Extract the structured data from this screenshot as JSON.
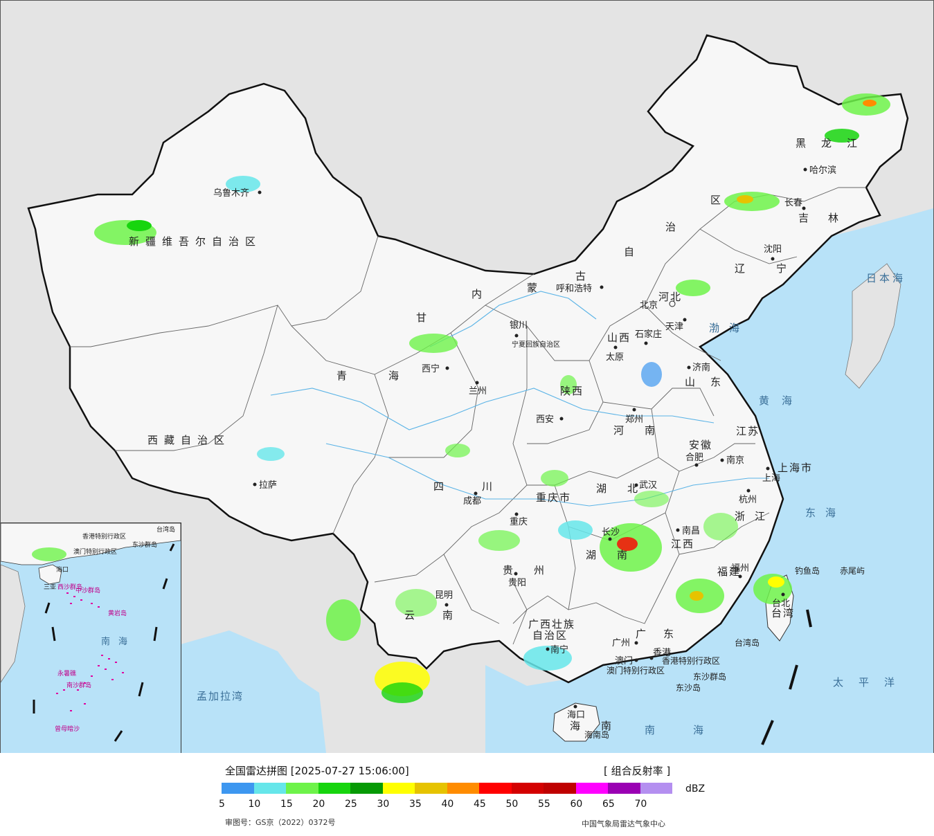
{
  "map": {
    "provinces": [
      {
        "id": "xinjiang",
        "text": "新疆维吾尔自治区"
      },
      {
        "id": "xizang",
        "text": "西藏自治区"
      },
      {
        "id": "qinghai",
        "text": "青海"
      },
      {
        "id": "gansu",
        "text": "甘"
      },
      {
        "id": "sichuan",
        "text": "四川"
      },
      {
        "id": "yunnan",
        "text": "云南"
      },
      {
        "id": "guizhou",
        "text": "贵州"
      },
      {
        "id": "guangxi",
        "text": "广西壮族"
      },
      {
        "id": "guangxi2",
        "text": "自治区"
      },
      {
        "id": "guangdong",
        "text": "广东"
      },
      {
        "id": "hunan",
        "text": "湖南"
      },
      {
        "id": "hubei",
        "text": "湖北"
      },
      {
        "id": "henan",
        "text": "河南"
      },
      {
        "id": "shandong",
        "text": "山东"
      },
      {
        "id": "jiangsu",
        "text": "江苏"
      },
      {
        "id": "anhui",
        "text": "安徽"
      },
      {
        "id": "zhejiang",
        "text": "浙江"
      },
      {
        "id": "jiangxi",
        "text": "江西"
      },
      {
        "id": "fujian",
        "text": "福建"
      },
      {
        "id": "shanxi",
        "text": "山西"
      },
      {
        "id": "hebei",
        "text": "河北"
      },
      {
        "id": "shaanxi",
        "text": "陕西"
      },
      {
        "id": "neimenggu1",
        "text": "内"
      },
      {
        "id": "neimenggu2",
        "text": "蒙"
      },
      {
        "id": "neimenggu3",
        "text": "古"
      },
      {
        "id": "neimenggu4",
        "text": "自"
      },
      {
        "id": "neimenggu5",
        "text": "治"
      },
      {
        "id": "neimenggu6",
        "text": "区"
      },
      {
        "id": "heilongjiang",
        "text": "黑龙江"
      },
      {
        "id": "jilin",
        "text": "吉林"
      },
      {
        "id": "liaoning",
        "text": "辽宁"
      },
      {
        "id": "hainan",
        "text": "海南"
      },
      {
        "id": "taiwan",
        "text": "台湾"
      },
      {
        "id": "chongqing",
        "text": "重庆市"
      },
      {
        "id": "shanghai",
        "text": "上海市"
      },
      {
        "id": "ningxia",
        "text": "宁夏回族自治区"
      },
      {
        "id": "hongkong",
        "text": "香港特别行政区"
      },
      {
        "id": "macau",
        "text": "澳门特别行政区"
      }
    ],
    "cities": [
      {
        "id": "urumqi",
        "text": "乌鲁木齐"
      },
      {
        "id": "lhasa",
        "text": "拉萨"
      },
      {
        "id": "xining",
        "text": "西宁"
      },
      {
        "id": "lanzhou",
        "text": "兰州"
      },
      {
        "id": "yinchuan",
        "text": "银川"
      },
      {
        "id": "huhehaote",
        "text": "呼和浩特"
      },
      {
        "id": "beijing",
        "text": "北京"
      },
      {
        "id": "tianjin",
        "text": "天津"
      },
      {
        "id": "shijiazhuang",
        "text": "石家庄"
      },
      {
        "id": "taiyuan",
        "text": "太原"
      },
      {
        "id": "jinan",
        "text": "济南"
      },
      {
        "id": "zhengzhou",
        "text": "郑州"
      },
      {
        "id": "xian",
        "text": "西安"
      },
      {
        "id": "hefei",
        "text": "合肥"
      },
      {
        "id": "nanjing",
        "text": "南京"
      },
      {
        "id": "shanghai_c",
        "text": "上海"
      },
      {
        "id": "hangzhou",
        "text": "杭州"
      },
      {
        "id": "wuhan",
        "text": "武汉"
      },
      {
        "id": "chengdu",
        "text": "成都"
      },
      {
        "id": "chongqing_c",
        "text": "重庆"
      },
      {
        "id": "guiyang",
        "text": "贵阳"
      },
      {
        "id": "kunming",
        "text": "昆明"
      },
      {
        "id": "nanning",
        "text": "南宁"
      },
      {
        "id": "changsha",
        "text": "长沙"
      },
      {
        "id": "nanchang",
        "text": "南昌"
      },
      {
        "id": "fuzhou",
        "text": "福州"
      },
      {
        "id": "taibei",
        "text": "台北"
      },
      {
        "id": "guangzhou",
        "text": "广州"
      },
      {
        "id": "aomen",
        "text": "澳门"
      },
      {
        "id": "xianggang",
        "text": "香港"
      },
      {
        "id": "haikou",
        "text": "海口"
      },
      {
        "id": "shenyang",
        "text": "沈阳"
      },
      {
        "id": "changchun",
        "text": "长春"
      },
      {
        "id": "haerbin",
        "text": "哈尔滨"
      }
    ],
    "seas": [
      {
        "id": "bohai",
        "text": "渤海"
      },
      {
        "id": "huanghai",
        "text": "黄海"
      },
      {
        "id": "donghai",
        "text": "东海"
      },
      {
        "id": "nanhai",
        "text": "南海"
      },
      {
        "id": "taipingyang",
        "text": "太平洋"
      },
      {
        "id": "ribenhai",
        "text": "日本海"
      },
      {
        "id": "mengjialawan",
        "text": "孟加拉湾"
      }
    ],
    "islands": [
      {
        "id": "diaoyudao",
        "text": "钓鱼岛"
      },
      {
        "id": "chiweiyu",
        "text": "赤尾屿"
      },
      {
        "id": "taiwandao",
        "text": "台湾岛"
      },
      {
        "id": "hainandao",
        "text": "海南岛"
      },
      {
        "id": "dongsha",
        "text": "东沙群岛"
      },
      {
        "id": "dongshadao",
        "text": "东沙岛"
      }
    ],
    "inset": {
      "sea": "南海",
      "labels": [
        {
          "id": "i_taiwan",
          "text": "台湾岛"
        },
        {
          "id": "i_hk",
          "text": "香港特别行政区"
        },
        {
          "id": "i_macau",
          "text": "澳门特别行政区"
        },
        {
          "id": "i_dongsha",
          "text": "东沙群岛"
        },
        {
          "id": "i_xisha",
          "text": "西沙群岛"
        },
        {
          "id": "i_zhongsha",
          "text": "中沙群岛"
        },
        {
          "id": "i_huangyan",
          "text": "黄岩岛"
        },
        {
          "id": "i_nansha",
          "text": "南沙群岛"
        },
        {
          "id": "i_yongshu",
          "text": "永暑礁"
        },
        {
          "id": "i_zengmu",
          "text": "曾母暗沙"
        },
        {
          "id": "i_haikou",
          "text": "海口"
        },
        {
          "id": "i_sanya",
          "text": "三亚"
        }
      ]
    },
    "colors": {
      "sea": "#b8e2f8",
      "land": "#f7f7f7",
      "outside": "#e4e4e4",
      "border": "#111111"
    }
  },
  "legend": {
    "title": "全国雷达拼图 [2025-07-27 15:06:00]",
    "product": "[ 组合反射率 ]",
    "unit": "dBZ",
    "colors": [
      "#3d97f0",
      "#66e6ea",
      "#6ef34a",
      "#17d50e",
      "#069a05",
      "#ffff00",
      "#e6c300",
      "#ff8c00",
      "#ff0000",
      "#d40000",
      "#bf0000",
      "#ff00ff",
      "#9a00b3",
      "#b48ff0"
    ],
    "ticks": [
      "5",
      "10",
      "15",
      "20",
      "25",
      "30",
      "35",
      "40",
      "45",
      "50",
      "55",
      "60",
      "65",
      "70"
    ],
    "review_no": "审图号：GS京（2022）0372号",
    "credit": "中国气象局雷达气象中心"
  }
}
